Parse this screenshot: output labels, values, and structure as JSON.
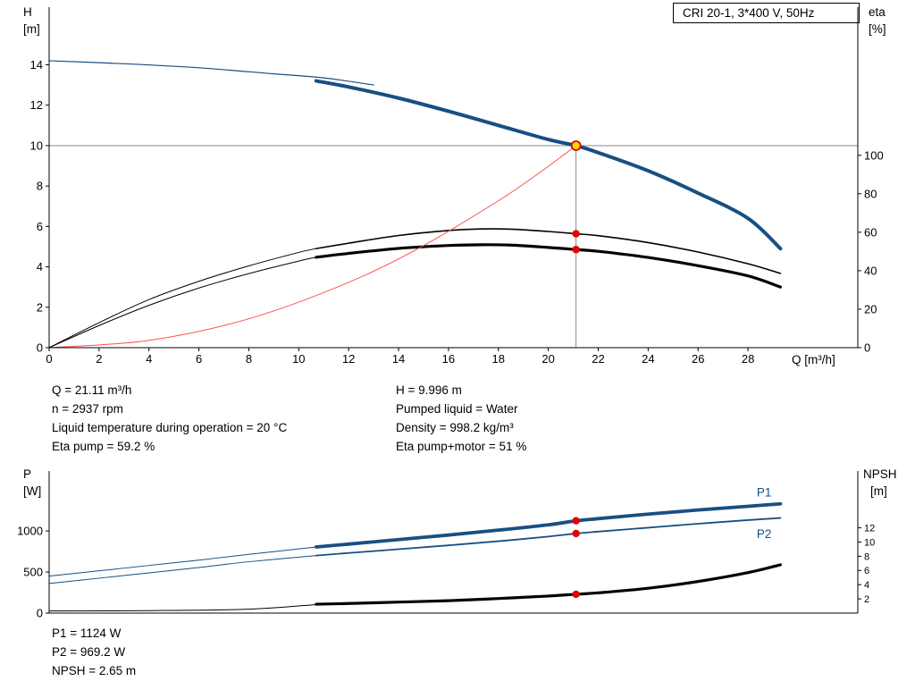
{
  "colors": {
    "curve_blue": "#174f82",
    "curve_black": "#000000",
    "system_red": "#ff4d4d",
    "marker_red": "#e60000",
    "duty_yellow": "#ffd800",
    "guide_gray": "#8a8a8a",
    "axis_black": "#000000"
  },
  "operating_point": {
    "left": [
      "Q = 21.11 m³/h",
      "n = 2937 rpm",
      "Liquid temperature during operation = 20 °C",
      "Eta pump = 59.2 %"
    ],
    "right": [
      "H = 9.996 m",
      "Pumped liquid = Water",
      "Density = 998.2 kg/m³",
      "Eta pump+motor = 51 %"
    ]
  },
  "results": [
    "P1 = 1124 W",
    "P2 = 969.2 W",
    "NPSH = 2.65 m"
  ],
  "chart_data": [
    {
      "type": "line",
      "title": "CRI 20-1, 3*400 V, 50Hz",
      "xlabel": "Q [m³/h]",
      "ylabel_left": [
        "H",
        "[m]"
      ],
      "ylabel_right": [
        "eta",
        "[%]"
      ],
      "xlim": [
        0,
        32.4
      ],
      "ylim_left": [
        0,
        16.85
      ],
      "ylim_right": [
        0,
        177
      ],
      "xticks": [
        0,
        2,
        4,
        6,
        8,
        10,
        12,
        14,
        16,
        18,
        20,
        22,
        24,
        26,
        28
      ],
      "yticks_left": [
        0,
        2,
        4,
        6,
        8,
        10,
        12,
        14
      ],
      "yticks_right": [
        0,
        20,
        40,
        60,
        80,
        100
      ],
      "guides": [
        {
          "type": "hline",
          "y": 9.996,
          "axis": "left",
          "x1": 0,
          "x2": 32.4
        },
        {
          "type": "vline",
          "x": 21.11,
          "axis": "left",
          "y1": 0,
          "y2": 9.996
        }
      ],
      "series": [
        {
          "name": "head-curve-thin",
          "axis": "left",
          "color": "#174f82",
          "width": 1.2,
          "points": [
            [
              0,
              14.2
            ],
            [
              3,
              14.05
            ],
            [
              6,
              13.85
            ],
            [
              9,
              13.55
            ],
            [
              11,
              13.35
            ],
            [
              13,
              13.0
            ]
          ]
        },
        {
          "name": "head-curve",
          "axis": "left",
          "color": "#174f82",
          "width": 4,
          "points": [
            [
              10.7,
              13.2
            ],
            [
              12,
              12.9
            ],
            [
              14,
              12.35
            ],
            [
              16,
              11.7
            ],
            [
              18,
              11.0
            ],
            [
              20,
              10.3
            ],
            [
              21.11,
              9.996
            ],
            [
              22,
              9.65
            ],
            [
              24,
              8.75
            ],
            [
              26,
              7.65
            ],
            [
              28,
              6.4
            ],
            [
              29.3,
              4.9
            ]
          ]
        },
        {
          "name": "eta-pump-thin",
          "axis": "right",
          "color": "#000000",
          "width": 1,
          "points": [
            [
              0,
              0
            ],
            [
              2,
              13
            ],
            [
              4,
              25
            ],
            [
              6,
              34.5
            ],
            [
              8,
              42.5
            ],
            [
              10,
              49.5
            ],
            [
              10.7,
              51.5
            ]
          ]
        },
        {
          "name": "eta-pump",
          "axis": "right",
          "color": "#000000",
          "width": 1.6,
          "points": [
            [
              10.7,
              51.5
            ],
            [
              12,
              54.3
            ],
            [
              14,
              58.3
            ],
            [
              16,
              60.9
            ],
            [
              17.3,
              61.7
            ],
            [
              18.5,
              61.6
            ],
            [
              20,
              60.4
            ],
            [
              21.11,
              59.2
            ],
            [
              22,
              58.2
            ],
            [
              24,
              54.6
            ],
            [
              26,
              49.7
            ],
            [
              28,
              43.6
            ],
            [
              29.3,
              38.6
            ]
          ]
        },
        {
          "name": "eta-pump-motor-thin",
          "axis": "right",
          "color": "#000000",
          "width": 1,
          "points": [
            [
              0,
              0
            ],
            [
              2,
              11.5
            ],
            [
              4,
              22
            ],
            [
              6,
              31
            ],
            [
              8,
              38.5
            ],
            [
              10,
              45
            ],
            [
              10.7,
              47
            ]
          ]
        },
        {
          "name": "eta-pump-motor",
          "axis": "right",
          "color": "#000000",
          "width": 3.2,
          "points": [
            [
              10.7,
              47
            ],
            [
              12,
              49
            ],
            [
              14,
              51.6
            ],
            [
              16,
              53.1
            ],
            [
              17.3,
              53.5
            ],
            [
              18.5,
              53.3
            ],
            [
              20,
              52.1
            ],
            [
              21.11,
              51
            ],
            [
              22,
              50.1
            ],
            [
              24,
              46.9
            ],
            [
              26,
              42.6
            ],
            [
              28,
              37.3
            ],
            [
              29.3,
              31.5
            ]
          ]
        },
        {
          "name": "system-curve",
          "axis": "left",
          "color": "#ff4d4d",
          "width": 1,
          "points": [
            [
              0,
              0
            ],
            [
              4,
              0.36
            ],
            [
              8,
              1.43
            ],
            [
              12,
              3.23
            ],
            [
              15,
              5.05
            ],
            [
              18,
              7.27
            ],
            [
              19.5,
              8.53
            ],
            [
              20.5,
              9.43
            ],
            [
              21.11,
              9.996
            ]
          ]
        }
      ],
      "markers": [
        {
          "x": 21.11,
          "y": 9.996,
          "axis": "left",
          "style": "duty"
        },
        {
          "x": 21.11,
          "y": 59.2,
          "axis": "right",
          "style": "dot"
        },
        {
          "x": 21.11,
          "y": 51,
          "axis": "right",
          "style": "dot"
        }
      ],
      "annotations": []
    },
    {
      "type": "line",
      "title": "",
      "xlabel": "",
      "ylabel_left": [
        "P",
        "[W]"
      ],
      "ylabel_right": [
        "NPSH",
        "[m]"
      ],
      "xlim": [
        0,
        32.4
      ],
      "ylim_left": [
        0,
        1730
      ],
      "ylim_right": [
        0,
        20
      ],
      "xticks": [],
      "yticks_left": [
        0,
        500,
        1000
      ],
      "yticks_right": [
        2,
        4,
        6,
        8,
        10,
        12
      ],
      "guides": [],
      "series": [
        {
          "name": "p1-thin",
          "axis": "left",
          "color": "#174f82",
          "width": 1,
          "points": [
            [
              0,
              450
            ],
            [
              2,
              515
            ],
            [
              4,
              580
            ],
            [
              6,
              645
            ],
            [
              8,
              715
            ],
            [
              10.7,
              805
            ]
          ]
        },
        {
          "name": "p1",
          "axis": "left",
          "color": "#174f82",
          "width": 3.8,
          "points": [
            [
              10.7,
              805
            ],
            [
              12,
              840
            ],
            [
              14,
              895
            ],
            [
              16,
              950
            ],
            [
              18,
              1010
            ],
            [
              20,
              1075
            ],
            [
              21.11,
              1124
            ],
            [
              22,
              1150
            ],
            [
              24,
              1205
            ],
            [
              26,
              1255
            ],
            [
              28,
              1300
            ],
            [
              29.3,
              1330
            ]
          ]
        },
        {
          "name": "p2-thin",
          "axis": "left",
          "color": "#174f82",
          "width": 1,
          "points": [
            [
              0,
              360
            ],
            [
              2,
              425
            ],
            [
              4,
              490
            ],
            [
              6,
              555
            ],
            [
              8,
              625
            ],
            [
              10.7,
              700
            ]
          ]
        },
        {
          "name": "p2",
          "axis": "left",
          "color": "#174f82",
          "width": 1.8,
          "points": [
            [
              10.7,
              700
            ],
            [
              12,
              732
            ],
            [
              14,
              778
            ],
            [
              16,
              825
            ],
            [
              18,
              875
            ],
            [
              20,
              932
            ],
            [
              21.11,
              969
            ],
            [
              22,
              992
            ],
            [
              24,
              1040
            ],
            [
              26,
              1088
            ],
            [
              28,
              1132
            ],
            [
              29.3,
              1158
            ]
          ]
        },
        {
          "name": "npsh-thin",
          "axis": "right",
          "color": "#000000",
          "width": 1,
          "points": [
            [
              0,
              0.3
            ],
            [
              4,
              0.35
            ],
            [
              8,
              0.55
            ],
            [
              10.7,
              1.2
            ]
          ]
        },
        {
          "name": "npsh",
          "axis": "right",
          "color": "#000000",
          "width": 3.2,
          "points": [
            [
              10.7,
              1.25
            ],
            [
              12,
              1.35
            ],
            [
              14,
              1.55
            ],
            [
              16,
              1.75
            ],
            [
              18,
              2.05
            ],
            [
              20,
              2.4
            ],
            [
              21.11,
              2.65
            ],
            [
              22,
              2.85
            ],
            [
              24,
              3.5
            ],
            [
              26,
              4.45
            ],
            [
              28,
              5.7
            ],
            [
              29.3,
              6.8
            ]
          ]
        }
      ],
      "markers": [
        {
          "x": 21.11,
          "y": 1124,
          "axis": "left",
          "style": "dot"
        },
        {
          "x": 21.11,
          "y": 969.2,
          "axis": "left",
          "style": "dot"
        },
        {
          "x": 21.11,
          "y": 2.65,
          "axis": "right",
          "style": "dot"
        }
      ],
      "annotations": [
        {
          "text": "P1",
          "x": 28.35,
          "y": 1420,
          "axis": "left",
          "color": "#174f82"
        },
        {
          "text": "P2",
          "x": 28.35,
          "y": 912,
          "axis": "left",
          "color": "#174f82"
        }
      ]
    }
  ]
}
